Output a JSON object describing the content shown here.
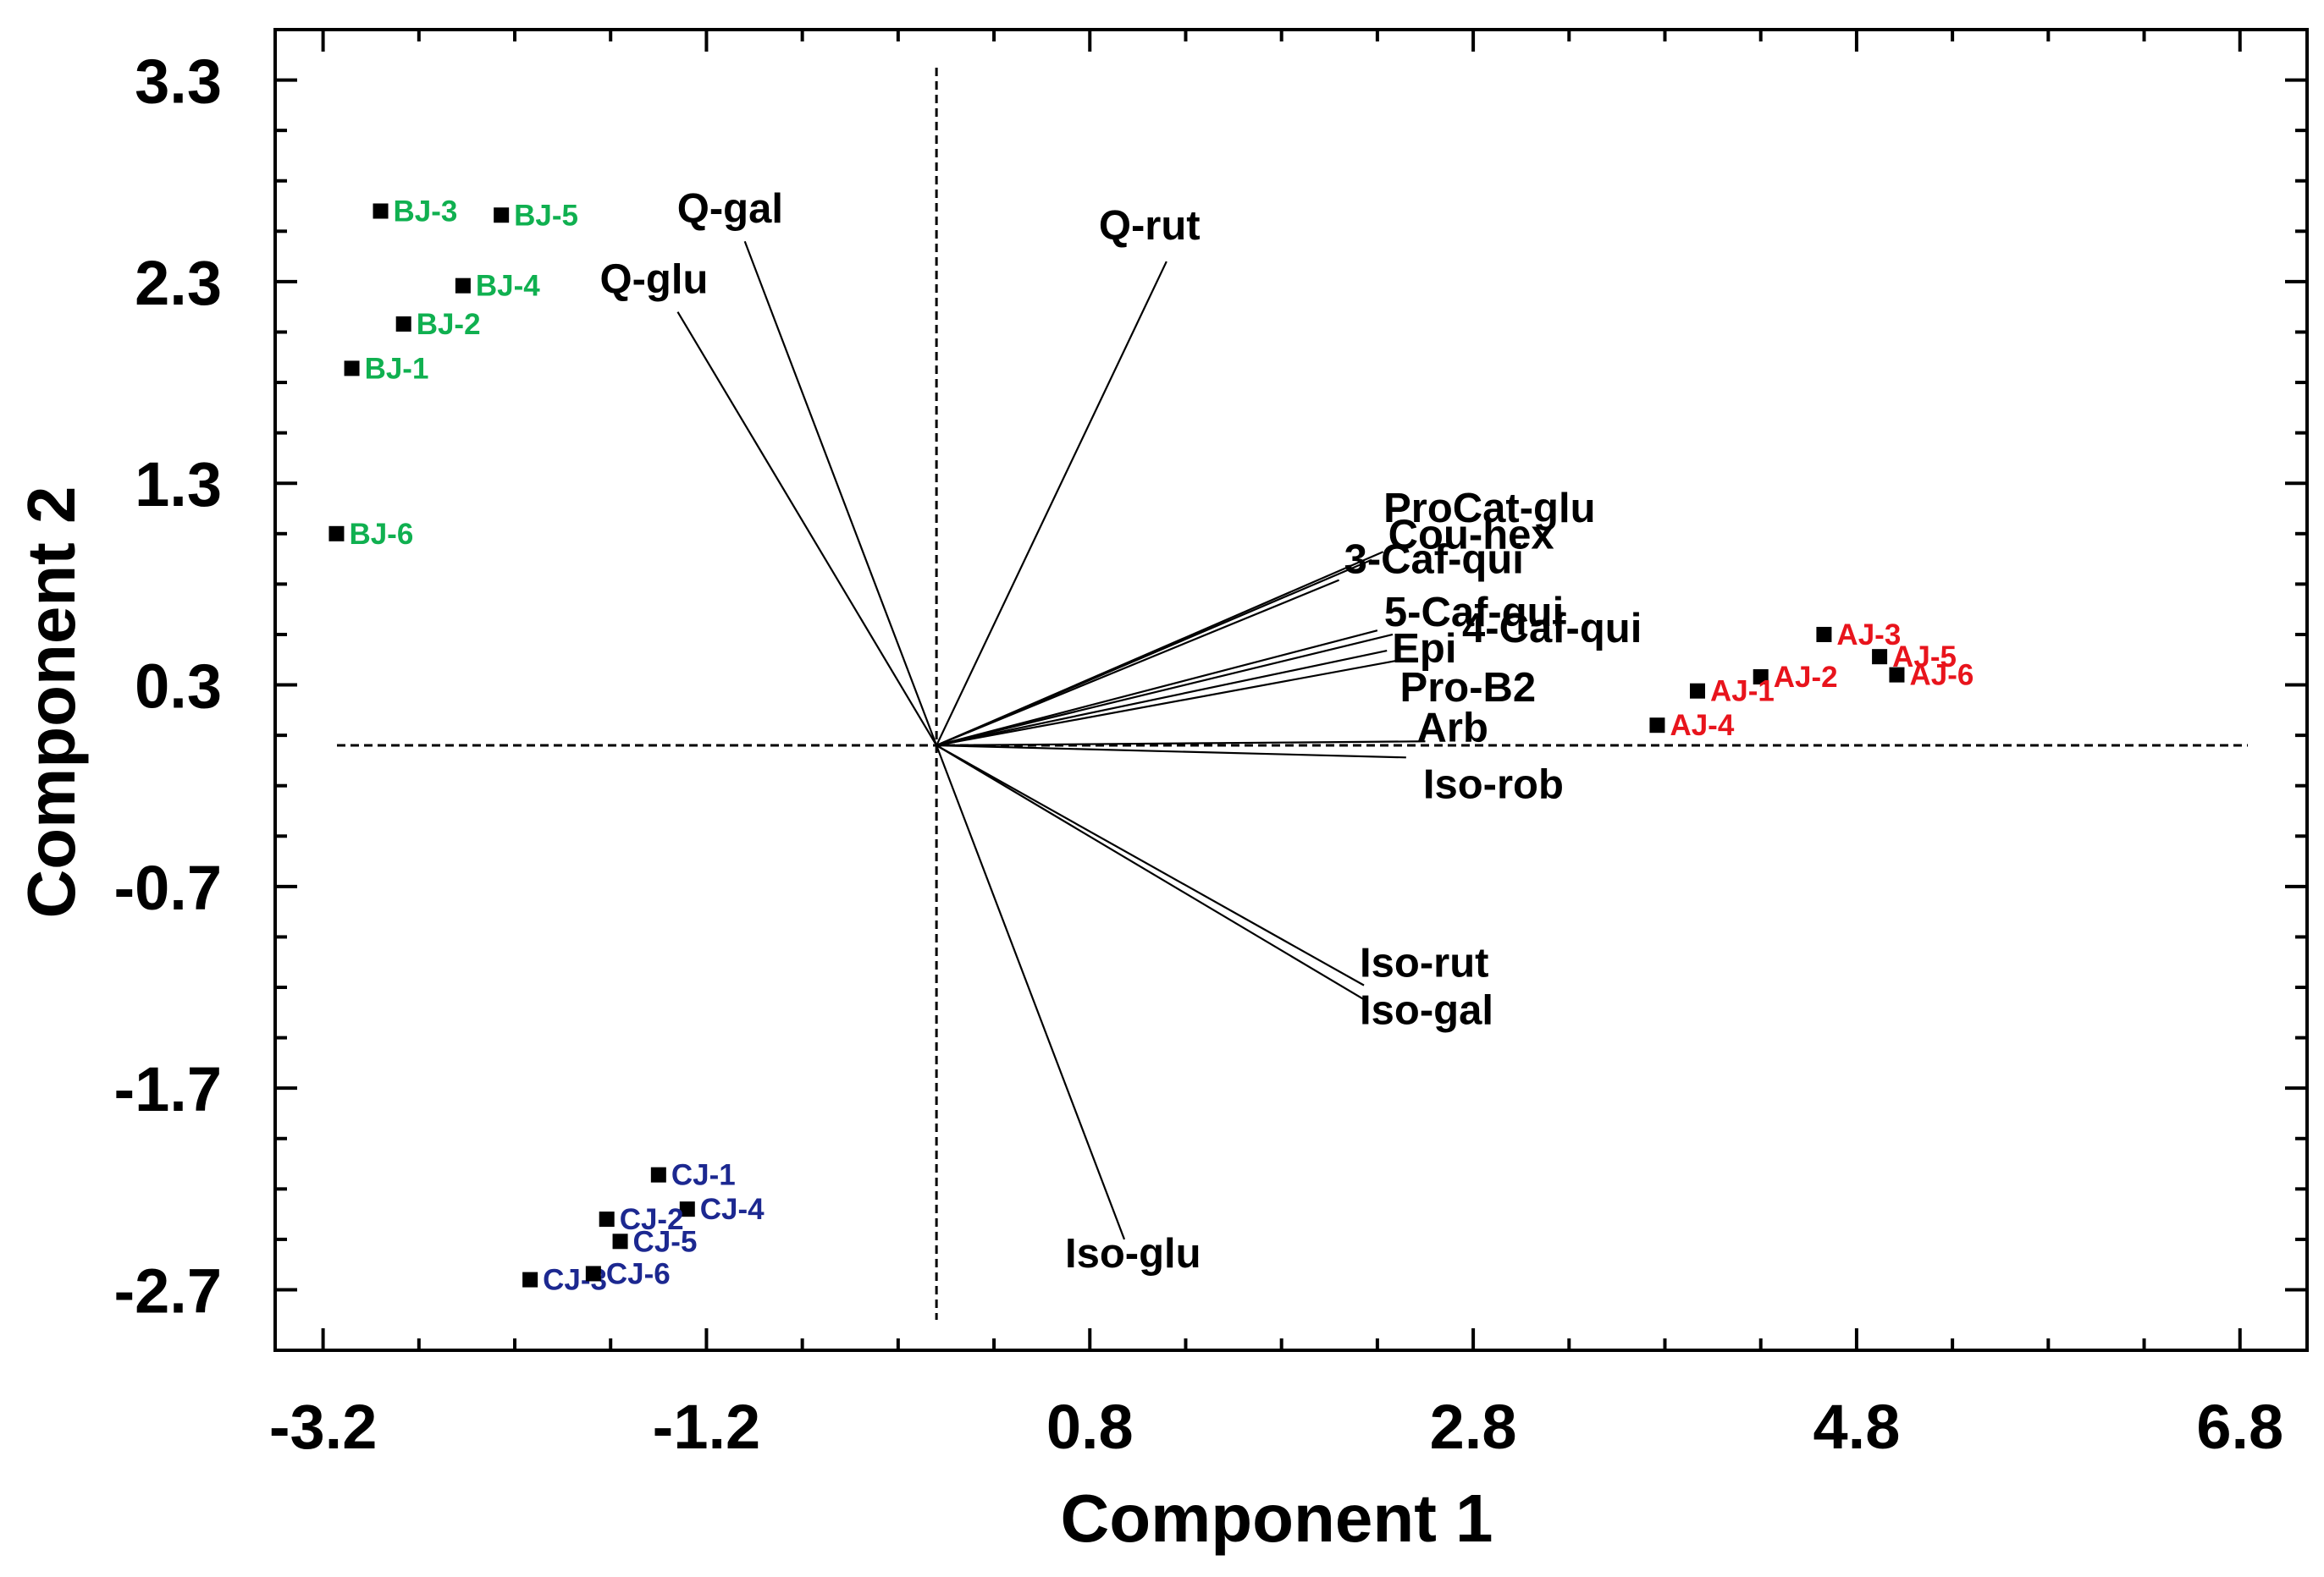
{
  "chart_data": {
    "type": "scatter",
    "subtype": "pca-biplot",
    "title": "",
    "xlabel": "Component 1",
    "ylabel": "Component 2",
    "xlim": [
      -3.45,
      7.15
    ],
    "ylim": [
      -3.0,
      3.55
    ],
    "xticks": [
      -3.2,
      -1.2,
      0.8,
      2.8,
      4.8,
      6.8
    ],
    "xtick_labels": [
      "-3.2",
      "-1.2",
      "0.8",
      "2.8",
      "4.8",
      "6.8"
    ],
    "yticks": [
      3.3,
      2.3,
      1.3,
      0.3,
      -0.7,
      -1.7,
      -2.7
    ],
    "ytick_labels": [
      "3.3",
      "2.3",
      "1.3",
      "0.3",
      "-0.7",
      "-1.7",
      "-2.7"
    ],
    "reference_lines": {
      "x": 0,
      "y": 0.0
    },
    "series": [
      {
        "name": "BJ",
        "color": "#10b050",
        "points": [
          {
            "label": "BJ-3",
            "x": -2.9,
            "y": 2.65
          },
          {
            "label": "BJ-5",
            "x": -2.27,
            "y": 2.63
          },
          {
            "label": "BJ-4",
            "x": -2.47,
            "y": 2.28
          },
          {
            "label": "BJ-2",
            "x": -2.78,
            "y": 2.09
          },
          {
            "label": "BJ-1",
            "x": -3.05,
            "y": 1.87
          },
          {
            "label": "BJ-6",
            "x": -3.13,
            "y": 1.05
          }
        ]
      },
      {
        "name": "AJ",
        "color": "#e8141c",
        "points": [
          {
            "label": "AJ-3",
            "x": 4.63,
            "y": 0.55
          },
          {
            "label": "AJ-5",
            "x": 4.92,
            "y": 0.44
          },
          {
            "label": "AJ-6",
            "x": 5.01,
            "y": 0.35
          },
          {
            "label": "AJ-2",
            "x": 4.3,
            "y": 0.34
          },
          {
            "label": "AJ-1",
            "x": 3.97,
            "y": 0.27
          },
          {
            "label": "AJ-4",
            "x": 3.76,
            "y": 0.1
          }
        ]
      },
      {
        "name": "CJ",
        "color": "#1c2890",
        "points": [
          {
            "label": "CJ-1",
            "x": -1.45,
            "y": -2.13
          },
          {
            "label": "CJ-4",
            "x": -1.3,
            "y": -2.3
          },
          {
            "label": "CJ-2",
            "x": -1.72,
            "y": -2.35
          },
          {
            "label": "CJ-5",
            "x": -1.65,
            "y": -2.46
          },
          {
            "label": "CJ-3",
            "x": -2.12,
            "y": -2.65
          },
          {
            "label": "CJ-6",
            "x": -1.79,
            "y": -2.62
          }
        ]
      }
    ],
    "loadings": [
      {
        "label": "Q-gal",
        "x": -1.0,
        "y": 2.5
      },
      {
        "label": "Q-glu",
        "x": -1.35,
        "y": 2.15
      },
      {
        "label": "Q-rut",
        "x": 1.2,
        "y": 2.4
      },
      {
        "label": "ProCat-glu",
        "x": 2.27,
        "y": 0.92
      },
      {
        "label": "Cou-hex",
        "x": 2.33,
        "y": 0.96
      },
      {
        "label": "3-Caf-qui",
        "x": 2.1,
        "y": 0.82
      },
      {
        "label": "5-Caf-qui",
        "x": 2.3,
        "y": 0.57
      },
      {
        "label": "4-Caf-qui",
        "x": 2.38,
        "y": 0.55
      },
      {
        "label": "Epi",
        "x": 2.35,
        "y": 0.47
      },
      {
        "label": "Pro-B2",
        "x": 2.4,
        "y": 0.42
      },
      {
        "label": "Arb",
        "x": 2.55,
        "y": 0.02
      },
      {
        "label": "Iso-rob",
        "x": 2.45,
        "y": -0.06
      },
      {
        "label": "Iso-rut",
        "x": 2.23,
        "y": -1.19
      },
      {
        "label": "Iso-gal",
        "x": 2.23,
        "y": -1.26
      },
      {
        "label": "Iso-glu",
        "x": 0.98,
        "y": -2.45
      }
    ]
  }
}
